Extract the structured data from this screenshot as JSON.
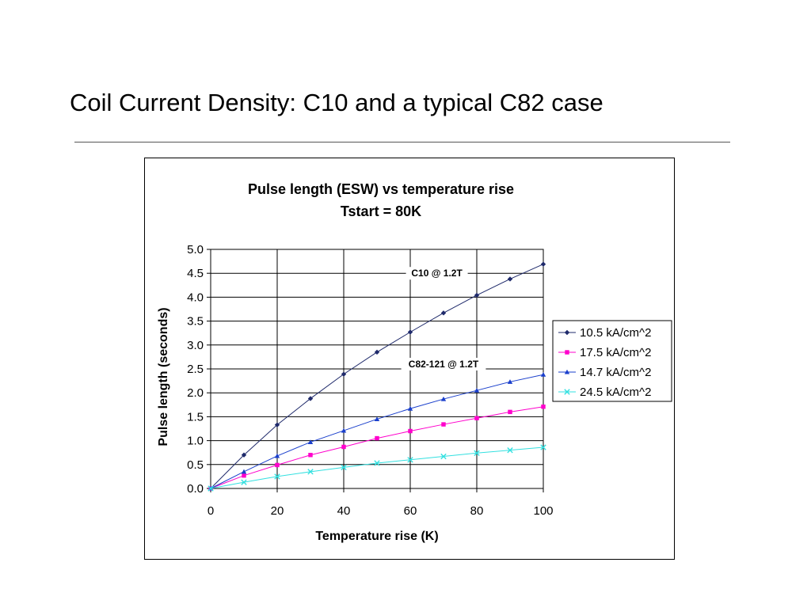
{
  "slide": {
    "title": "Coil Current Density:  C10 and a typical C82 case"
  },
  "chart_data": {
    "type": "line",
    "title": "Pulse length (ESW) vs temperature rise",
    "subtitle": "Tstart = 80K",
    "xlabel": "Temperature rise (K)",
    "ylabel": "Pulse length (seconds)",
    "xlim": [
      0,
      100
    ],
    "ylim": [
      0,
      5.0
    ],
    "xticks": [
      "0",
      "20",
      "40",
      "60",
      "80",
      "100"
    ],
    "yticks": [
      "0.0",
      "0.5",
      "1.0",
      "1.5",
      "2.0",
      "2.5",
      "3.0",
      "3.5",
      "4.0",
      "4.5",
      "5.0"
    ],
    "grid": true,
    "legend_position": "right",
    "x": [
      0,
      10,
      20,
      30,
      40,
      50,
      60,
      70,
      80,
      90,
      100
    ],
    "series": [
      {
        "name": "10.5  kA/cm^2",
        "color": "#1f2a6b",
        "marker": "diamond",
        "values": [
          0,
          0.7,
          1.33,
          1.88,
          2.39,
          2.85,
          3.27,
          3.67,
          4.04,
          4.38,
          4.69
        ]
      },
      {
        "name": "17.5  kA/cm^2",
        "color": "#ff00cc",
        "marker": "square",
        "values": [
          0,
          0.27,
          0.49,
          0.7,
          0.87,
          1.05,
          1.2,
          1.34,
          1.47,
          1.6,
          1.71
        ]
      },
      {
        "name": "14.7  kA/cm^2",
        "color": "#1a3fcc",
        "marker": "triangle",
        "values": [
          0,
          0.35,
          0.68,
          0.97,
          1.21,
          1.45,
          1.67,
          1.87,
          2.05,
          2.23,
          2.38
        ]
      },
      {
        "name": "24.5  kA/cm^2",
        "color": "#33e0e0",
        "marker": "x",
        "values": [
          0,
          0.13,
          0.25,
          0.35,
          0.44,
          0.53,
          0.6,
          0.67,
          0.74,
          0.8,
          0.86
        ]
      }
    ],
    "annotations": [
      {
        "text": "C10 @ 1.2T",
        "x": 68,
        "y": 4.5
      },
      {
        "text": "C82-121 @ 1.2T",
        "x": 70,
        "y": 2.6
      }
    ]
  }
}
